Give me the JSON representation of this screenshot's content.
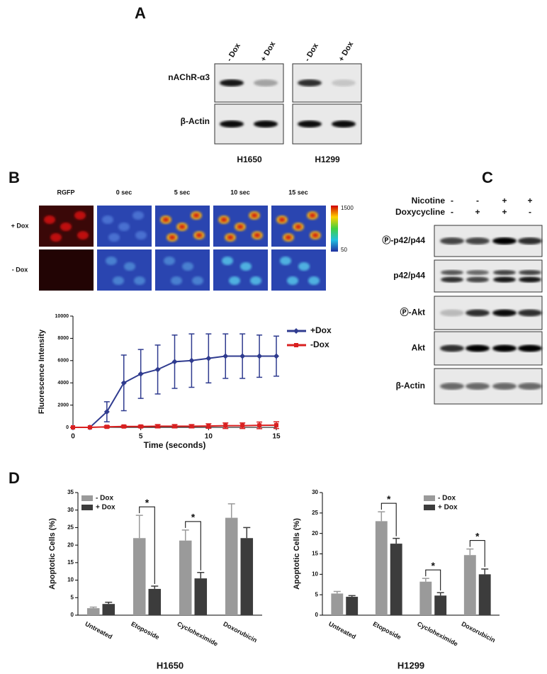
{
  "panel_labels": [
    "A",
    "B",
    "C",
    "D"
  ],
  "panel_a": {
    "columns": [
      "- Dox",
      "+ Dox",
      "- Dox",
      "+ Dox"
    ],
    "rows": [
      "nAChR-α3",
      "β-Actin"
    ],
    "cell_lines": [
      "H1650",
      "H1299"
    ]
  },
  "panel_b": {
    "image_columns": [
      "RGFP",
      "0 sec",
      "5 sec",
      "10 sec",
      "15 sec"
    ],
    "image_rows": [
      "+ Dox",
      "- Dox"
    ],
    "colorbar_range": [
      1500,
      50
    ]
  },
  "panel_c": {
    "treatments": [
      {
        "name": "Nicotine",
        "signs": [
          "-",
          "-",
          "+",
          "+"
        ]
      },
      {
        "name": "Doxycycline",
        "signs": [
          "-",
          "+",
          "+",
          "-"
        ]
      }
    ],
    "rows": [
      "Ⓟ-p42/p44",
      "p42/p44",
      "Ⓟ-Akt",
      "Akt",
      "β-Actin"
    ]
  },
  "chart_data": [
    {
      "type": "line",
      "xlabel": "Time (seconds)",
      "ylabel": "Fluorescence Intensity",
      "x": [
        0,
        1.25,
        2.5,
        3.75,
        5,
        6.25,
        7.5,
        8.75,
        10,
        11.25,
        12.5,
        13.75,
        15
      ],
      "series": [
        {
          "name": "+Dox",
          "color": "#2f3b8f",
          "marker": "diamond",
          "values": [
            0,
            0,
            1400,
            4000,
            4800,
            5200,
            5900,
            6000,
            6200,
            6400,
            6400,
            6400,
            6400
          ],
          "errors": [
            0,
            0,
            900,
            2500,
            2200,
            2200,
            2400,
            2400,
            2200,
            2000,
            2000,
            1900,
            1800
          ]
        },
        {
          "name": "-Dox",
          "color": "#d92020",
          "marker": "square",
          "values": [
            0,
            0,
            50,
            80,
            80,
            100,
            100,
            100,
            120,
            150,
            150,
            180,
            200
          ],
          "errors": [
            0,
            0,
            100,
            100,
            100,
            150,
            150,
            150,
            200,
            250,
            250,
            300,
            300
          ]
        }
      ],
      "xlim": [
        0,
        15
      ],
      "ylim": [
        0,
        10000
      ],
      "xticks": [
        0,
        5,
        10,
        15
      ],
      "yticks": [
        0,
        2000,
        4000,
        6000,
        8000,
        10000
      ],
      "legend": "right"
    },
    {
      "type": "bar",
      "title": "H1650",
      "ylabel": "Apoptotic Cells (%)",
      "categories": [
        "Untreated",
        "Etoposide",
        "Cycloheximide",
        "Doxorubicin"
      ],
      "series": [
        {
          "name": "- Dox",
          "color": "#9a9a9a",
          "values": [
            2,
            22,
            21.3,
            27.8
          ],
          "errors": [
            0.3,
            6.5,
            3,
            4
          ]
        },
        {
          "name": "+ Dox",
          "color": "#3c3c3c",
          "values": [
            3.2,
            7.5,
            10.5,
            22
          ],
          "errors": [
            0.5,
            0.8,
            1.7,
            3
          ]
        }
      ],
      "annotations": [
        null,
        "*",
        "*",
        null
      ],
      "ylim": [
        0,
        35
      ],
      "yticks": [
        0,
        5,
        10,
        15,
        20,
        25,
        30,
        35
      ],
      "legend": "upper left"
    },
    {
      "type": "bar",
      "title": "H1299",
      "ylabel": "Apoptotic Cells (%)",
      "categories": [
        "Untreated",
        "Etoposide",
        "Cycloheximide",
        "Doxorubicin"
      ],
      "series": [
        {
          "name": "- Dox",
          "color": "#9a9a9a",
          "values": [
            5.3,
            23,
            8.2,
            14.7
          ],
          "errors": [
            0.5,
            2.3,
            0.8,
            1.5
          ]
        },
        {
          "name": "+ Dox",
          "color": "#3c3c3c",
          "values": [
            4.5,
            17.5,
            4.8,
            10
          ],
          "errors": [
            0.3,
            1.3,
            0.7,
            1.3
          ]
        }
      ],
      "annotations": [
        null,
        "*",
        "*",
        "*"
      ],
      "ylim": [
        0,
        30
      ],
      "yticks": [
        0,
        5,
        10,
        15,
        20,
        25,
        30
      ],
      "legend": "upper right"
    }
  ]
}
